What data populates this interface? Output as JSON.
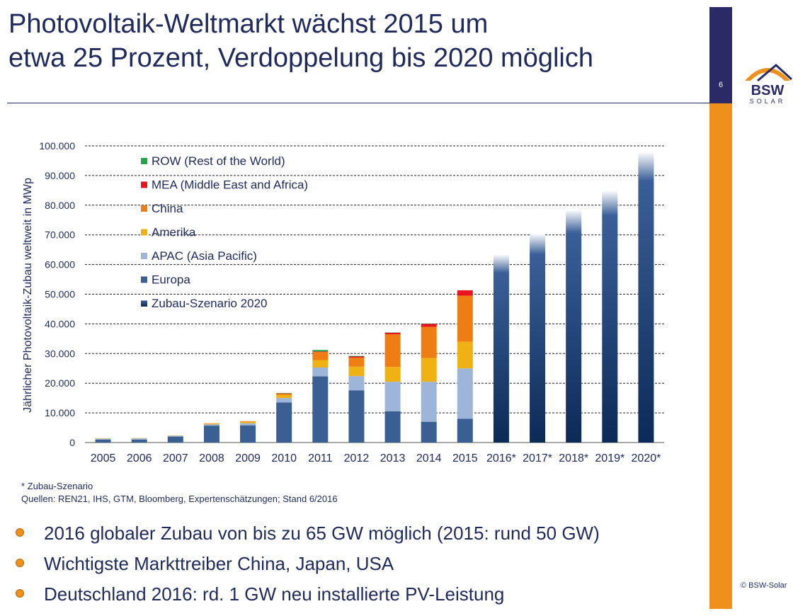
{
  "slide": {
    "title_line1": "Photovoltaik-Weltmarkt wächst 2015 um",
    "title_line2": "etwa 25 Prozent, Verdoppelung bis 2020 möglich",
    "page_number": "6",
    "logo_text": "BSW",
    "logo_subtext": "SOLAR",
    "copyright": "© BSW-Solar",
    "footnote": "* Zubau-Szenario",
    "sources": "Quellen: REN21, IHS, GTM, Bloomberg, Expertenschätzungen; Stand 6/2016",
    "bullets": [
      "2016 globaler Zubau von bis zu 65 GW möglich (2015: rund 50 GW)",
      "Wichtigste Markttreiber China, Japan, USA",
      "Deutschland 2016: rd. 1 GW neu installierte PV-Leistung"
    ],
    "colors": {
      "navy": "#1f2a5c",
      "sidebar_dark": "#2a2a66",
      "accent_orange": "#f0901c"
    }
  },
  "chart_data": {
    "type": "bar",
    "stacked": true,
    "ylabel": "Jährlicher Photovoltaik-Zubau weltweit in MWp",
    "ylim": [
      0,
      100000
    ],
    "yticks": [
      0,
      10000,
      20000,
      30000,
      40000,
      50000,
      60000,
      70000,
      80000,
      90000,
      100000
    ],
    "ytick_labels": [
      "0",
      "10.000",
      "20.000",
      "30.000",
      "40.000",
      "50.000",
      "60.000",
      "70.000",
      "80.000",
      "90.000",
      "100.000"
    ],
    "grid": "horizontal dashed",
    "legend_position": "top-left",
    "categories": [
      "2005",
      "2006",
      "2007",
      "2008",
      "2009",
      "2010",
      "2011",
      "2012",
      "2013",
      "2014",
      "2015",
      "2016*",
      "2017*",
      "2018*",
      "2019*",
      "2020*"
    ],
    "series": [
      {
        "name": "Europa",
        "color": "#3a5f92",
        "values": [
          1000,
          1000,
          2000,
          5700,
          5800,
          13500,
          22300,
          17600,
          10500,
          7000,
          8000,
          null,
          null,
          null,
          null,
          null
        ]
      },
      {
        "name": "APAC (Asia Pacific)",
        "color": "#9db5d8",
        "values": [
          300,
          400,
          300,
          400,
          700,
          1500,
          3000,
          4800,
          10000,
          13500,
          17000,
          null,
          null,
          null,
          null,
          null
        ]
      },
      {
        "name": "Amerika",
        "color": "#f0b114",
        "values": [
          100,
          100,
          100,
          300,
          500,
          1000,
          2500,
          3200,
          5000,
          8000,
          9000,
          null,
          null,
          null,
          null,
          null
        ]
      },
      {
        "name": "China",
        "color": "#ee7d14",
        "values": [
          0,
          0,
          0,
          100,
          200,
          500,
          2700,
          3000,
          11000,
          10500,
          15500,
          null,
          null,
          null,
          null,
          null
        ]
      },
      {
        "name": "MEA (Middle East and Africa)",
        "color": "#e8141e",
        "values": [
          0,
          0,
          0,
          0,
          0,
          100,
          200,
          400,
          500,
          1000,
          1800,
          null,
          null,
          null,
          null,
          null
        ]
      },
      {
        "name": "ROW (Rest of the World)",
        "color": "#22a84b",
        "values": [
          0,
          0,
          0,
          0,
          0,
          100,
          500,
          200,
          100,
          100,
          0,
          null,
          null,
          null,
          null,
          null
        ]
      },
      {
        "name": "Zubau-Szenario 2020",
        "color": "#1b3f78",
        "values": [
          null,
          null,
          null,
          null,
          null,
          null,
          null,
          null,
          null,
          null,
          null,
          63500,
          70500,
          78500,
          85000,
          98000
        ]
      }
    ],
    "legend_order": [
      "ROW (Rest of the World)",
      "MEA (Middle East and Africa)",
      "China",
      "Amerika",
      "APAC (Asia Pacific)",
      "Europa",
      "Zubau-Szenario 2020"
    ]
  }
}
